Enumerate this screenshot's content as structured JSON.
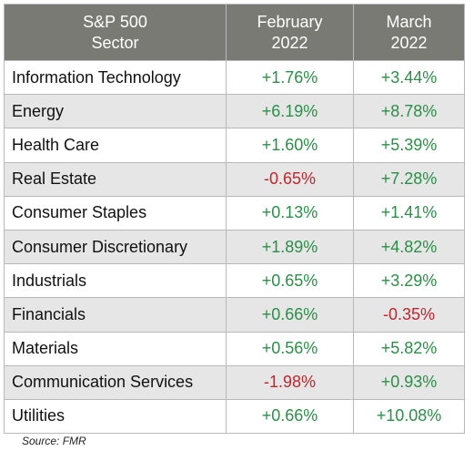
{
  "chart_data": {
    "type": "table",
    "columns": [
      "S&P 500 Sector",
      "February 2022",
      "March 2022"
    ],
    "header": {
      "sector": [
        "S&P 500",
        "Sector"
      ],
      "feb": [
        "February",
        "2022"
      ],
      "mar": [
        "March",
        "2022"
      ]
    },
    "rows": [
      {
        "sector": "Information Technology",
        "feb": "+1.76%",
        "mar": "+3.44%"
      },
      {
        "sector": "Energy",
        "feb": "+6.19%",
        "mar": "+8.78%"
      },
      {
        "sector": "Health Care",
        "feb": "+1.60%",
        "mar": "+5.39%"
      },
      {
        "sector": "Real Estate",
        "feb": "-0.65%",
        "mar": "+7.28%"
      },
      {
        "sector": "Consumer Staples",
        "feb": "+0.13%",
        "mar": "+1.41%"
      },
      {
        "sector": "Consumer Discretionary",
        "feb": "+1.89%",
        "mar": "+4.82%"
      },
      {
        "sector": "Industrials",
        "feb": "+0.65%",
        "mar": "+3.29%"
      },
      {
        "sector": "Financials",
        "feb": "+0.66%",
        "mar": "-0.35%"
      },
      {
        "sector": "Materials",
        "feb": "+0.56%",
        "mar": "+5.82%"
      },
      {
        "sector": "Communication Services",
        "feb": "-1.98%",
        "mar": "+0.93%"
      },
      {
        "sector": "Utilities",
        "feb": "+0.66%",
        "mar": "+10.08%"
      }
    ],
    "source": "Source: FMR"
  },
  "colors": {
    "header_bg": "#7a7a74",
    "header_text": "#ffffff",
    "row_shade": "#e6e6e6",
    "positive": "#2a8f47",
    "negative": "#c0262d",
    "border": "#b9b9b9"
  }
}
